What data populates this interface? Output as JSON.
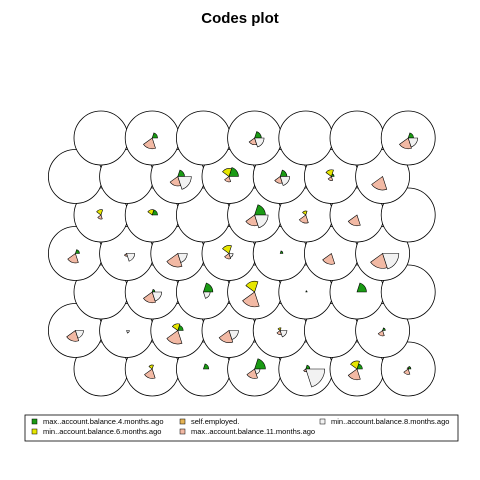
{
  "chart_data": {
    "type": "som-codes-fan",
    "title": "Codes plot",
    "variables": [
      {
        "name": "max..account.balance.4.months.ago",
        "color": "#1a9a14"
      },
      {
        "name": "min..account.balance.6.months.ago",
        "color": "#e6e600"
      },
      {
        "name": "self.employed.",
        "color": "#e6b455"
      },
      {
        "name": "max..account.balance.11.months.ago",
        "color": "#f2b9a4"
      },
      {
        "name": "min..account.balance.8.months.ago",
        "color": "#f2f2f2"
      }
    ],
    "grid": {
      "rows": 7,
      "cols": 7,
      "topology": "hexagonal"
    },
    "units": [
      [
        0.0,
        0.0,
        0.0,
        0.0,
        0.0
      ],
      [
        0.0,
        0.15,
        0.0,
        0.35,
        0.0
      ],
      [
        0.2,
        0.0,
        0.0,
        0.0,
        0.0
      ],
      [
        0.4,
        0.0,
        0.0,
        0.35,
        0.2
      ],
      [
        0.15,
        0.0,
        0.0,
        0.1,
        0.7
      ],
      [
        0.2,
        0.3,
        0.0,
        0.4,
        0.0
      ],
      [
        0.1,
        0.05,
        0.0,
        0.2,
        0.0
      ],
      [
        0.0,
        0.0,
        0.0,
        0.4,
        0.3
      ],
      [
        0.0,
        0.0,
        0.0,
        0.0,
        0.1
      ],
      [
        0.2,
        0.25,
        0.0,
        0.5,
        0.0
      ],
      [
        0.0,
        0.0,
        0.0,
        0.45,
        0.35
      ],
      [
        0.0,
        0.1,
        0.0,
        0.15,
        0.25
      ],
      [
        0.0,
        0.0,
        0.0,
        0.0,
        0.0
      ],
      [
        0.1,
        0.0,
        0.0,
        0.2,
        0.0
      ],
      [
        0.0,
        0.0,
        0.0,
        0.0,
        0.0
      ],
      [
        0.1,
        0.0,
        0.0,
        0.4,
        0.35
      ],
      [
        0.35,
        0.0,
        0.0,
        0.0,
        0.25
      ],
      [
        0.0,
        0.4,
        0.0,
        0.55,
        0.0
      ],
      [
        0.05,
        0.0,
        0.0,
        0.0,
        0.0
      ],
      [
        0.35,
        0.0,
        0.0,
        0.0,
        0.0
      ],
      [
        0.0,
        0.0,
        0.0,
        0.0,
        0.0
      ],
      [
        0.15,
        0.0,
        0.0,
        0.35,
        0.0
      ],
      [
        0.0,
        0.0,
        0.0,
        0.1,
        0.3
      ],
      [
        0.0,
        0.0,
        0.0,
        0.5,
        0.35
      ],
      [
        0.0,
        0.3,
        0.0,
        0.2,
        0.15
      ],
      [
        0.1,
        0.0,
        0.0,
        0.0,
        0.0
      ],
      [
        0.0,
        0.0,
        0.0,
        0.4,
        0.0
      ],
      [
        0.0,
        0.0,
        0.0,
        0.55,
        0.6
      ],
      [
        0.0,
        0.2,
        0.0,
        0.15,
        0.0
      ],
      [
        0.2,
        0.2,
        0.0,
        0.0,
        0.0
      ],
      [
        0.0,
        0.0,
        0.0,
        0.0,
        0.0
      ],
      [
        0.4,
        0.0,
        0.0,
        0.4,
        0.5
      ],
      [
        0.0,
        0.15,
        0.0,
        0.3,
        0.0
      ],
      [
        0.0,
        0.0,
        0.0,
        0.4,
        0.0
      ],
      [
        0.0,
        0.0,
        0.0,
        0.0,
        0.0
      ],
      [
        0.0,
        0.0,
        0.0,
        0.0,
        0.0
      ],
      [
        0.0,
        0.0,
        0.0,
        0.0,
        0.0
      ],
      [
        0.25,
        0.0,
        0.0,
        0.35,
        0.5
      ],
      [
        0.35,
        0.3,
        0.0,
        0.2,
        0.0
      ],
      [
        0.25,
        0.0,
        0.0,
        0.25,
        0.35
      ],
      [
        0.1,
        0.25,
        0.0,
        0.15,
        0.0
      ],
      [
        0.0,
        0.0,
        0.0,
        0.5,
        0.0
      ],
      [
        0.0,
        0.0,
        0.0,
        0.0,
        0.0
      ],
      [
        0.2,
        0.0,
        0.0,
        0.4,
        0.0
      ],
      [
        0.0,
        0.0,
        0.0,
        0.0,
        0.0
      ],
      [
        0.25,
        0.0,
        0.0,
        0.25,
        0.35
      ],
      [
        0.0,
        0.0,
        0.0,
        0.0,
        0.0
      ],
      [
        0.0,
        0.0,
        0.0,
        0.0,
        0.0
      ],
      [
        0.2,
        0.0,
        0.0,
        0.4,
        0.35
      ]
    ],
    "legend": {
      "position": "bottom",
      "ncol": 3
    }
  }
}
